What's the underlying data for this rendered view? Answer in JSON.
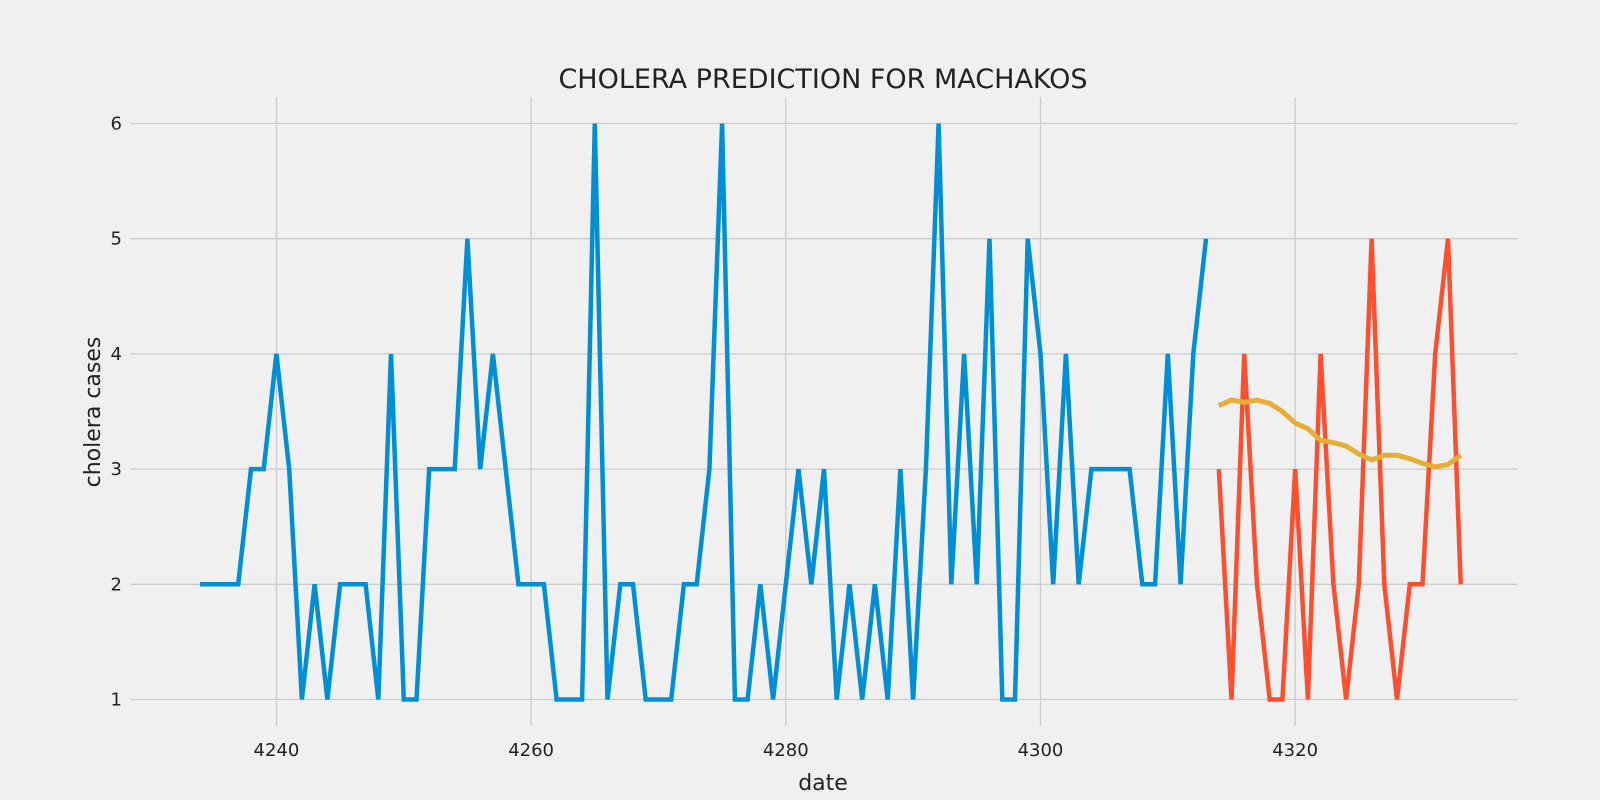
{
  "chart_data": {
    "type": "line",
    "title": "CHOLERA PREDICTION FOR MACHAKOS",
    "xlabel": "date",
    "ylabel": "cholera cases",
    "xlim": [
      4228.5,
      4337.5
    ],
    "ylim": [
      0.77,
      6.23
    ],
    "xticks": [
      4240,
      4260,
      4280,
      4300,
      4320
    ],
    "yticks": [
      1,
      2,
      3,
      4,
      5,
      6
    ],
    "grid": true,
    "legend": "none",
    "series": [
      {
        "color": "#008fd5",
        "x": [
          4234,
          4235,
          4236,
          4237,
          4238,
          4239,
          4240,
          4241,
          4242,
          4243,
          4244,
          4245,
          4246,
          4247,
          4248,
          4249,
          4250,
          4251,
          4252,
          4253,
          4254,
          4255,
          4256,
          4257,
          4258,
          4259,
          4260,
          4261,
          4262,
          4263,
          4264,
          4265,
          4266,
          4267,
          4268,
          4269,
          4270,
          4271,
          4272,
          4273,
          4274,
          4275,
          4276,
          4277,
          4278,
          4279,
          4280,
          4281,
          4282,
          4283,
          4284,
          4285,
          4286,
          4287,
          4288,
          4289,
          4290,
          4291,
          4292,
          4293,
          4294,
          4295,
          4296,
          4297,
          4298,
          4299,
          4300,
          4301,
          4302,
          4303,
          4304,
          4305,
          4306,
          4307,
          4308,
          4309,
          4310,
          4311,
          4312,
          4313
        ],
        "values": [
          2,
          2,
          2,
          2,
          3,
          3,
          4,
          3,
          1,
          2,
          1,
          2,
          2,
          2,
          1,
          4,
          1,
          1,
          3,
          3,
          3,
          5,
          3,
          4,
          3,
          2,
          2,
          2,
          1,
          1,
          1,
          6,
          1,
          2,
          2,
          1,
          1,
          1,
          2,
          2,
          3,
          6,
          1,
          1,
          2,
          1,
          2,
          3,
          2,
          3,
          1,
          2,
          1,
          2,
          1,
          3,
          1,
          3,
          6,
          2,
          4,
          2,
          5,
          1,
          1,
          5,
          4,
          2,
          4,
          2,
          3,
          3,
          3,
          3,
          2,
          2,
          4,
          2,
          4,
          5
        ]
      },
      {
        "color": "#fc4f30",
        "x": [
          4314,
          4315,
          4316,
          4317,
          4318,
          4319,
          4320,
          4321,
          4322,
          4323,
          4324,
          4325,
          4326,
          4327,
          4328,
          4329,
          4330,
          4331,
          4332,
          4333
        ],
        "values": [
          3,
          1,
          4,
          2,
          1,
          1,
          3,
          1,
          4,
          2,
          1,
          2,
          5,
          2,
          1,
          2,
          2,
          4,
          5,
          2
        ]
      },
      {
        "color": "#e5ae38",
        "x": [
          4314,
          4315,
          4316,
          4317,
          4318,
          4319,
          4320,
          4321,
          4322,
          4323,
          4324,
          4325,
          4326,
          4327,
          4328,
          4329,
          4330,
          4331,
          4332,
          4333
        ],
        "values": [
          3.55,
          3.6,
          3.58,
          3.6,
          3.57,
          3.5,
          3.4,
          3.35,
          3.25,
          3.23,
          3.2,
          3.13,
          3.08,
          3.12,
          3.12,
          3.09,
          3.05,
          3.02,
          3.04,
          3.12
        ]
      }
    ]
  }
}
